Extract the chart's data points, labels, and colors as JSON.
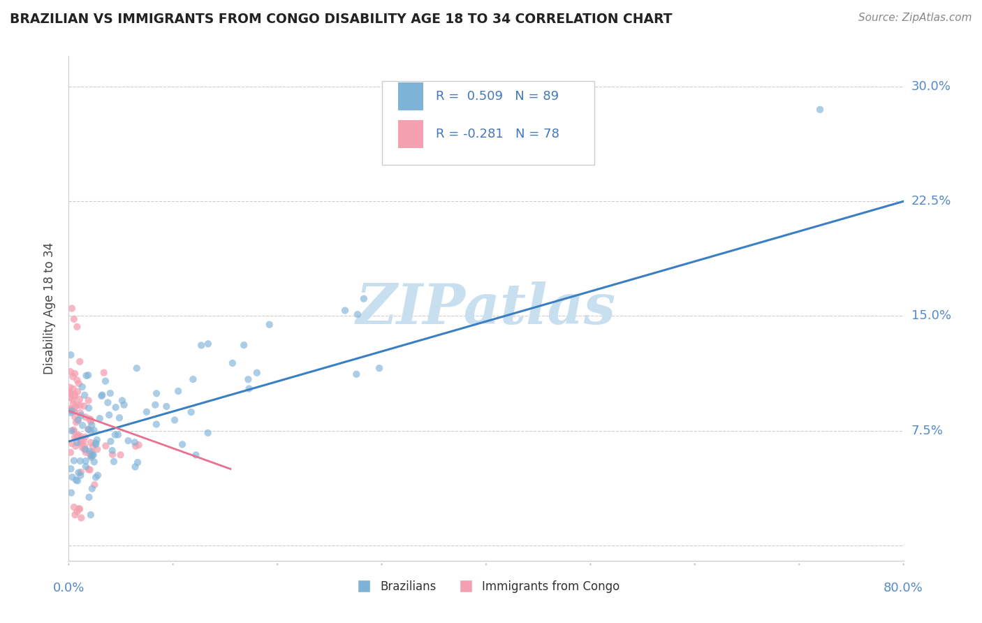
{
  "title": "BRAZILIAN VS IMMIGRANTS FROM CONGO DISABILITY AGE 18 TO 34 CORRELATION CHART",
  "source": "Source: ZipAtlas.com",
  "ylabel": "Disability Age 18 to 34",
  "xlim": [
    0.0,
    0.8
  ],
  "ylim": [
    -0.01,
    0.32
  ],
  "yticks": [
    0.0,
    0.075,
    0.15,
    0.225,
    0.3
  ],
  "yticklabels": [
    "",
    "7.5%",
    "15.0%",
    "22.5%",
    "30.0%"
  ],
  "blue_color": "#7EB3D8",
  "pink_color": "#F4A0B0",
  "blue_R": 0.509,
  "blue_N": 89,
  "pink_R": -0.281,
  "pink_N": 78,
  "watermark": "ZIPatlas",
  "watermark_color": "#C8DFF0",
  "blue_line_x": [
    0.0,
    0.8
  ],
  "blue_line_y": [
    0.068,
    0.225
  ],
  "pink_line_x": [
    0.0,
    0.155
  ],
  "pink_line_y": [
    0.088,
    0.05
  ]
}
